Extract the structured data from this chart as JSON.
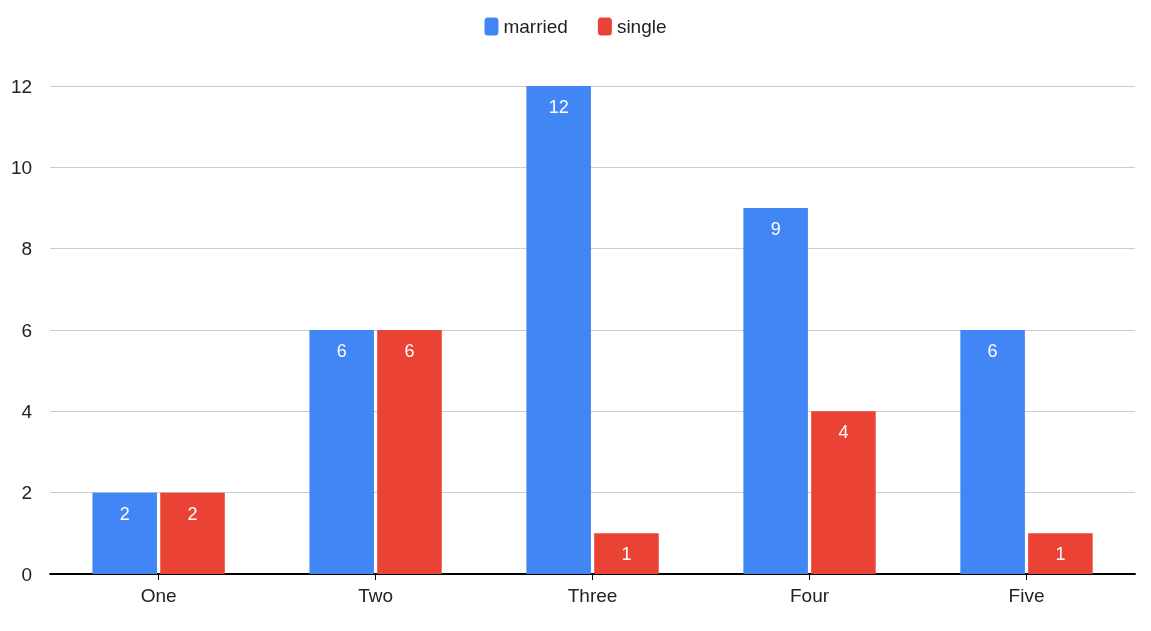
{
  "chart_data": {
    "type": "bar",
    "categories": [
      "One",
      "Two",
      "Three",
      "Four",
      "Five"
    ],
    "series": [
      {
        "name": "married",
        "color": "#4285f4",
        "values": [
          2,
          6,
          12,
          9,
          6
        ]
      },
      {
        "name": "single",
        "color": "#ea4335",
        "values": [
          2,
          6,
          1,
          4,
          1
        ]
      }
    ],
    "ylim": [
      0,
      12
    ],
    "yticks": [
      0,
      2,
      4,
      6,
      8,
      10,
      12
    ],
    "grid": "y",
    "legend": "top",
    "data_labels": true
  }
}
